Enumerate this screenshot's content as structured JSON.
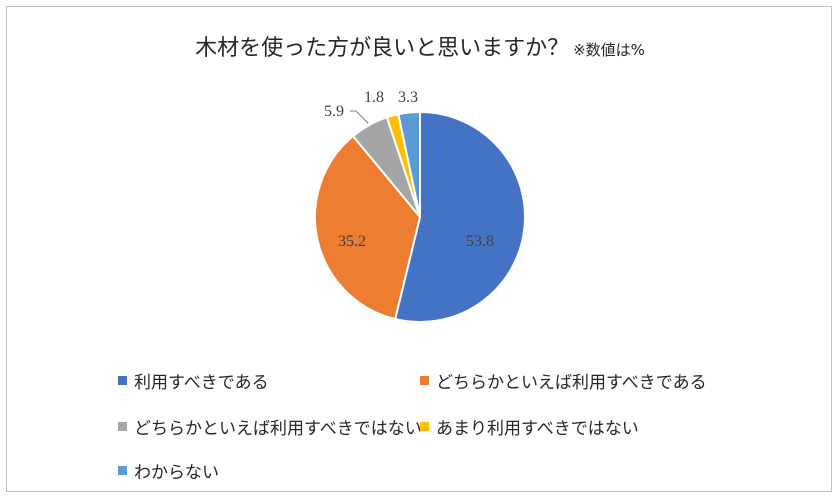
{
  "chart_data": {
    "type": "pie",
    "title": "木材を使った方が良いと思いますか？",
    "subtitle": "※数値は%",
    "categories": [
      "利用すべきである",
      "どちらかといえば利用すべきである",
      "どちらかといえば利用すべきではない",
      "あまり利用すべきではない",
      "わからない"
    ],
    "values": [
      53.8,
      35.2,
      5.9,
      1.8,
      3.3
    ],
    "data_labels": [
      "53.8",
      "35.2",
      "5.9",
      "1.8",
      "3.3"
    ],
    "colors": [
      "#4472C4",
      "#ED7D31",
      "#A5A5A5",
      "#FFC000",
      "#5B9BD5"
    ],
    "start_angle": "12 o'clock",
    "direction": "clockwise",
    "legend_position": "bottom"
  }
}
